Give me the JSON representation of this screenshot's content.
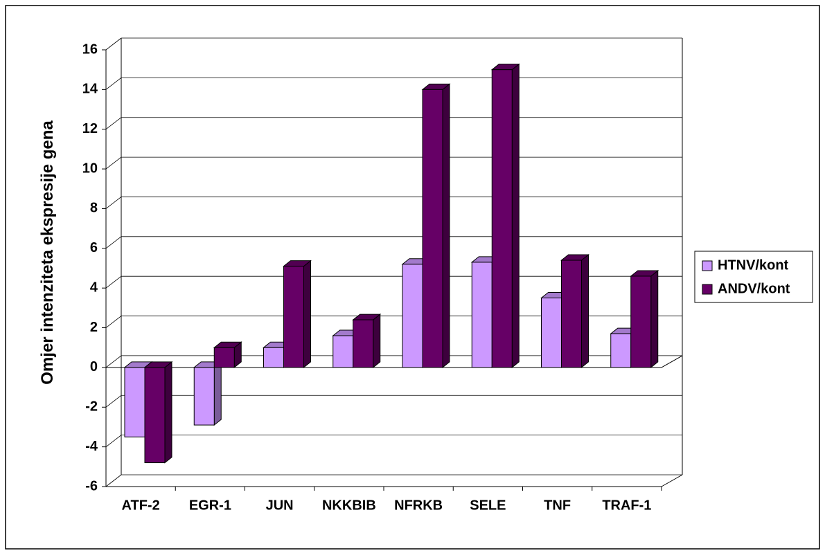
{
  "chart_data": {
    "type": "bar3d",
    "y_label": "Omjer intenziteta ekspresije gena",
    "categories": [
      "ATF-2",
      "EGR-1",
      "JUN",
      "NKKBIB",
      "NFRKB",
      "SELE",
      "TNF",
      "TRAF-1"
    ],
    "series": [
      {
        "name": "HTNV/kont",
        "color": "#cc99ff",
        "values": [
          -3.5,
          -2.9,
          1.0,
          1.6,
          5.2,
          5.3,
          3.5,
          1.7
        ]
      },
      {
        "name": "ANDV/kont",
        "color": "#660066",
        "values": [
          -4.8,
          1.0,
          5.1,
          2.4,
          14.0,
          15.0,
          5.4,
          4.6
        ]
      }
    ],
    "ylim": [
      -6,
      16
    ],
    "yticks": [
      -6,
      -4,
      -2,
      0,
      2,
      4,
      6,
      8,
      10,
      12,
      14,
      16
    ],
    "grid": true
  }
}
